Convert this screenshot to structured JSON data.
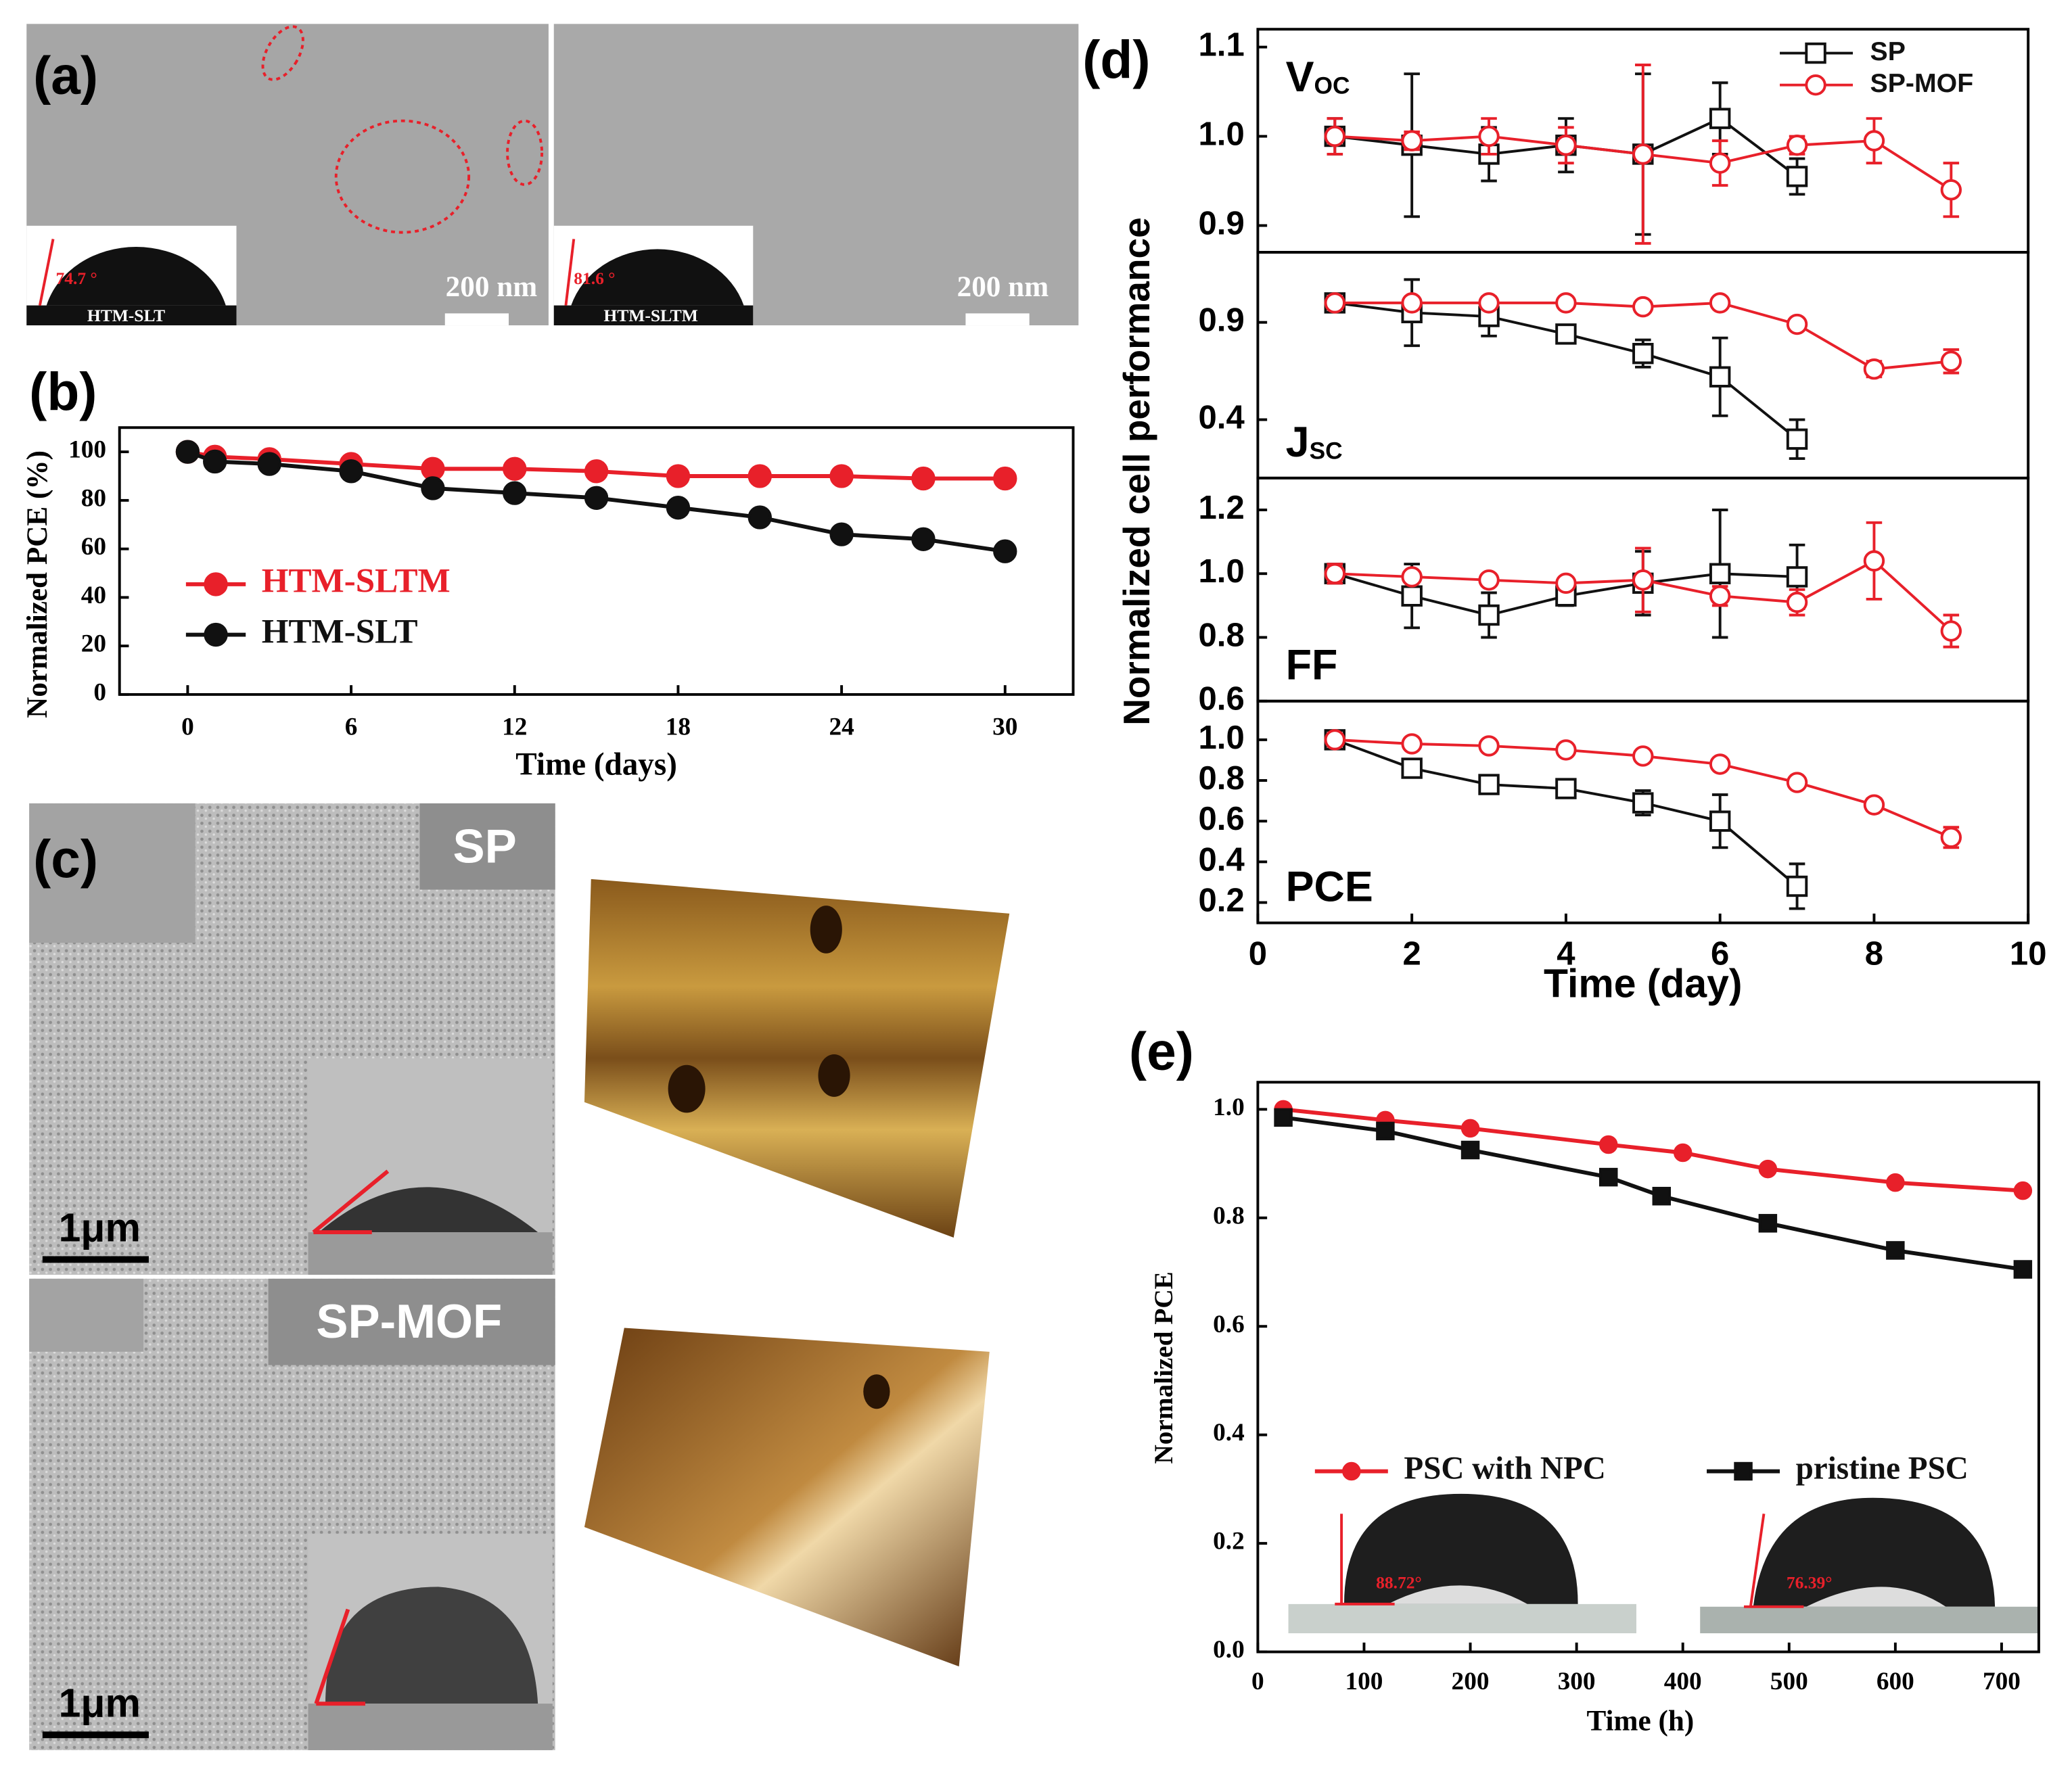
{
  "panel_labels": [
    "(a)",
    "(b)",
    "(c)",
    "(d)",
    "(e)"
  ],
  "images": {
    "a": {
      "scale_bars": [
        "200 nm",
        "200 nm"
      ],
      "insets": [
        {
          "label": "HTM-SLT",
          "angle": "74.7 °"
        },
        {
          "label": "HTM-SLTM",
          "angle": "81.6 °"
        }
      ]
    },
    "c": {
      "tags": [
        "SP",
        "SP-MOF"
      ],
      "scale_bars": [
        "1μm",
        "1μm"
      ]
    }
  },
  "chart_data": [
    {
      "type": "line",
      "xlabel": "Time (days)",
      "ylabel": "Normalized PCE (%)",
      "x": [
        0,
        1,
        3,
        6,
        9,
        12,
        15,
        18,
        21,
        24,
        27,
        30
      ],
      "series": [
        {
          "name": "HTM-SLTM",
          "color": "#e8202a",
          "marker": "circle",
          "values": [
            100,
            98,
            97,
            95,
            93,
            93,
            92,
            90,
            90,
            90,
            89,
            89
          ]
        },
        {
          "name": "HTM-SLT",
          "color": "#111111",
          "marker": "circle",
          "values": [
            100,
            96,
            95,
            92,
            85,
            83,
            81,
            77,
            73,
            66,
            64,
            59
          ]
        }
      ],
      "xlim": [
        -2.5,
        32.5
      ],
      "xticks": [
        0,
        6,
        12,
        18,
        24,
        30
      ],
      "ylim": [
        0,
        110
      ],
      "yticks": [
        0,
        20,
        40,
        60,
        80,
        100
      ]
    },
    {
      "type": "errorbar",
      "xlabel": "Time (day)",
      "ylabel": "Normalized cell performance",
      "legend": [
        {
          "name": "SP",
          "color": "#111111",
          "marker": "square"
        },
        {
          "name": "SP-MOF",
          "color": "#e8202a",
          "marker": "circle"
        }
      ],
      "xlim": [
        0,
        10
      ],
      "xticks": [
        0,
        2,
        4,
        6,
        8,
        10
      ],
      "panels": [
        {
          "label": "V",
          "label_sub": "OC",
          "ylim": [
            0.87,
            1.12
          ],
          "yticks": [
            0.9,
            {
              "value": 1.0,
              "label": "1.0"
            },
            1.1
          ],
          "series": [
            {
              "x": [
                1,
                2,
                3,
                4,
                5,
                6,
                7
              ],
              "values": [
                1.0,
                0.99,
                0.98,
                0.99,
                0.98,
                1.02,
                0.955
              ],
              "errors": [
                0.02,
                0.08,
                0.03,
                0.03,
                0.09,
                0.04,
                0.02
              ]
            },
            {
              "x": [
                1,
                2,
                3,
                4,
                5,
                6,
                7,
                8,
                9
              ],
              "values": [
                1.0,
                0.995,
                1.0,
                0.99,
                0.98,
                0.97,
                0.99,
                0.995,
                0.94
              ],
              "errors": [
                0.02,
                0.01,
                0.02,
                0.02,
                0.1,
                0.025,
                0.01,
                0.025,
                0.03
              ]
            }
          ]
        },
        {
          "label": "J",
          "label_sub": "SC",
          "ylim": [
            0.1,
            1.26
          ],
          "yticks": [
            0.4,
            0.9
          ],
          "series": [
            {
              "x": [
                1,
                2,
                3,
                4,
                5,
                6,
                7
              ],
              "values": [
                1.0,
                0.95,
                0.93,
                0.84,
                0.74,
                0.62,
                0.3
              ],
              "errors": [
                0.02,
                0.17,
                0.1,
                0.03,
                0.07,
                0.2,
                0.1
              ]
            },
            {
              "x": [
                1,
                2,
                3,
                4,
                5,
                6,
                7,
                8,
                9
              ],
              "values": [
                1.0,
                1.0,
                1.0,
                1.0,
                0.98,
                1.0,
                0.89,
                0.66,
                0.7
              ],
              "errors": [
                0.02,
                0.01,
                0.01,
                0.01,
                0.01,
                0.01,
                0.02,
                0.04,
                0.06
              ]
            }
          ]
        },
        {
          "label": "FF",
          "ylim": [
            0.6,
            1.3
          ],
          "yticks": [
            0.6,
            0.8,
            {
              "value": 1.0,
              "label": "1.0"
            },
            1.2
          ],
          "series": [
            {
              "x": [
                1,
                2,
                3,
                4,
                5,
                6,
                7
              ],
              "values": [
                1.0,
                0.93,
                0.87,
                0.93,
                0.97,
                1.0,
                0.99
              ],
              "errors": [
                0.03,
                0.1,
                0.07,
                0.03,
                0.1,
                0.2,
                0.1
              ]
            },
            {
              "x": [
                1,
                2,
                3,
                4,
                5,
                6,
                7,
                8,
                9
              ],
              "values": [
                1.0,
                0.99,
                0.98,
                0.97,
                0.98,
                0.93,
                0.91,
                1.04,
                0.82
              ],
              "errors": [
                0.03,
                0.01,
                0.01,
                0.01,
                0.1,
                0.03,
                0.04,
                0.12,
                0.05
              ]
            }
          ]
        },
        {
          "label": "PCE",
          "ylim": [
            0.1,
            1.19
          ],
          "yticks": [
            0.2,
            0.4,
            0.6,
            0.8,
            {
              "value": 1.0,
              "label": "1.0"
            }
          ],
          "series": [
            {
              "x": [
                1,
                2,
                3,
                4,
                5,
                6,
                7
              ],
              "values": [
                1.0,
                0.86,
                0.78,
                0.76,
                0.69,
                0.6,
                0.28
              ],
              "errors": [
                0.02,
                0.02,
                0.02,
                0.02,
                0.06,
                0.13,
                0.11
              ]
            },
            {
              "x": [
                1,
                2,
                3,
                4,
                5,
                6,
                7,
                8,
                9
              ],
              "values": [
                1.0,
                0.98,
                0.97,
                0.95,
                0.92,
                0.88,
                0.79,
                0.68,
                0.52
              ],
              "errors": [
                0.02,
                0.01,
                0.01,
                0.01,
                0.01,
                0.02,
                0.02,
                0.03,
                0.05
              ]
            }
          ]
        }
      ]
    },
    {
      "type": "line",
      "xlabel": "Time (h)",
      "ylabel": "Normalized PCE",
      "series": [
        {
          "name": "PSC with NPC",
          "color": "#e8202a",
          "marker": "circle",
          "x": [
            24,
            120,
            200,
            330,
            400,
            480,
            600,
            720
          ],
          "values": [
            1.0,
            0.98,
            0.965,
            0.935,
            0.92,
            0.89,
            0.865,
            0.85
          ]
        },
        {
          "name": "pristine PSC",
          "color": "#111111",
          "marker": "square",
          "x": [
            24,
            120,
            200,
            330,
            380,
            480,
            600,
            720
          ],
          "values": [
            0.985,
            0.96,
            0.925,
            0.875,
            0.84,
            0.79,
            0.74,
            0.705
          ]
        }
      ],
      "insets": [
        {
          "angle": "88.72°"
        },
        {
          "angle": "76.39°"
        }
      ],
      "xlim": [
        0,
        735
      ],
      "xticks": [
        0,
        100,
        200,
        300,
        400,
        500,
        600,
        700
      ],
      "ylim": [
        0,
        1.05
      ],
      "yticks": [
        {
          "value": 0,
          "label": "0.0"
        },
        0.2,
        0.4,
        0.6,
        0.8,
        {
          "value": 1.0,
          "label": "1.0"
        }
      ]
    }
  ]
}
